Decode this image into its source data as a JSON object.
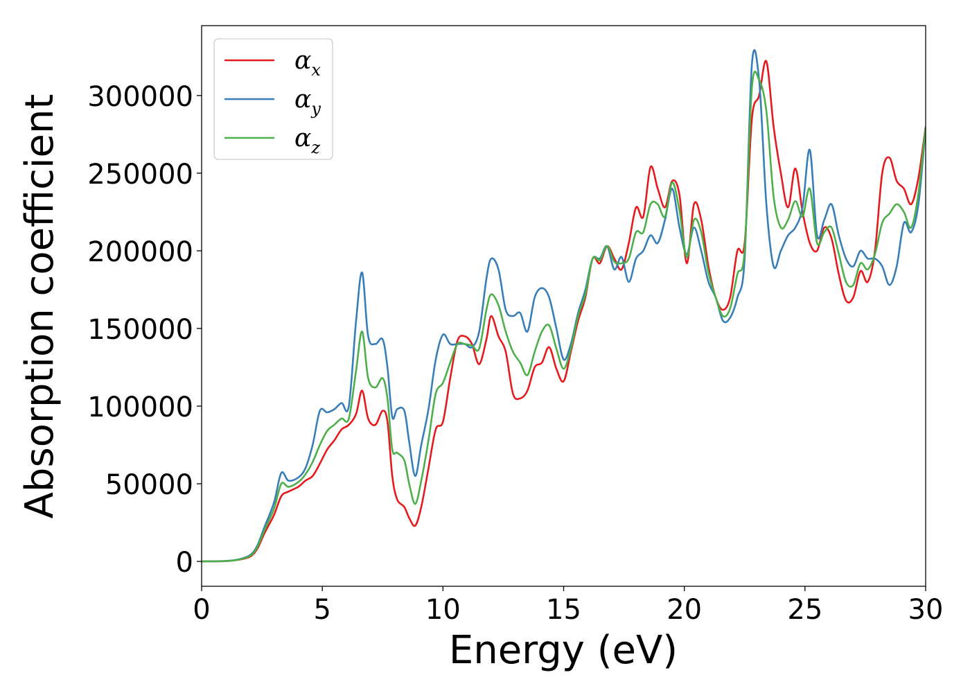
{
  "chart_data": {
    "type": "line",
    "title": "",
    "xlabel": "Energy (eV)",
    "ylabel": "Absorption coefficient",
    "xlim": [
      0,
      30
    ],
    "ylim": [
      -16000,
      345000
    ],
    "xticks": [
      0,
      5,
      10,
      15,
      20,
      25,
      30
    ],
    "yticks": [
      0,
      50000,
      100000,
      150000,
      200000,
      250000,
      300000
    ],
    "grid": false,
    "legend_position": "top-left",
    "series": [
      {
        "name": "α",
        "subscript": "x",
        "color": "#e41a1c",
        "x": [
          0,
          1,
          1.5,
          2,
          2.3,
          2.6,
          3,
          3.3,
          3.6,
          4,
          4.3,
          4.6,
          4.9,
          5.2,
          5.5,
          5.8,
          6.1,
          6.4,
          6.65,
          6.9,
          7.2,
          7.5,
          7.7,
          7.9,
          8.1,
          8.4,
          8.6,
          8.85,
          9.1,
          9.4,
          9.7,
          10,
          10.3,
          10.6,
          10.9,
          11.2,
          11.5,
          11.8,
          12,
          12.3,
          12.6,
          12.9,
          13.2,
          13.5,
          13.8,
          14.1,
          14.4,
          14.7,
          15,
          15.3,
          15.6,
          15.9,
          16.2,
          16.5,
          16.8,
          17.1,
          17.4,
          17.7,
          18,
          18.3,
          18.6,
          18.9,
          19.2,
          19.5,
          19.8,
          20.1,
          20.4,
          20.7,
          21,
          21.3,
          21.6,
          21.9,
          22.2,
          22.5,
          22.8,
          23.1,
          23.4,
          23.7,
          24,
          24.3,
          24.6,
          24.9,
          25.2,
          25.5,
          25.8,
          26.1,
          26.4,
          26.7,
          27,
          27.3,
          27.6,
          27.9,
          28.2,
          28.5,
          28.8,
          29.1,
          29.4,
          29.7,
          30
        ],
        "y": [
          0,
          200,
          1000,
          3000,
          8000,
          18000,
          30000,
          42000,
          45000,
          48000,
          52000,
          55000,
          63000,
          72000,
          78000,
          85000,
          88000,
          95000,
          110000,
          92000,
          88000,
          97000,
          90000,
          55000,
          40000,
          35000,
          28000,
          23000,
          35000,
          60000,
          85000,
          90000,
          118000,
          142000,
          145000,
          140000,
          127000,
          143000,
          158000,
          145000,
          135000,
          108000,
          105000,
          110000,
          125000,
          128000,
          138000,
          124000,
          116000,
          135000,
          155000,
          170000,
          195000,
          192000,
          203000,
          195000,
          188000,
          205000,
          228000,
          222000,
          254000,
          240000,
          228000,
          245000,
          236000,
          192000,
          230000,
          220000,
          190000,
          170000,
          162000,
          170000,
          200000,
          205000,
          285000,
          300000,
          322000,
          280000,
          250000,
          228000,
          253000,
          225000,
          205000,
          200000,
          215000,
          208000,
          185000,
          168000,
          170000,
          187000,
          180000,
          200000,
          250000,
          260000,
          245000,
          240000,
          230000,
          247000,
          280000
        ]
      },
      {
        "name": "α",
        "subscript": "y",
        "color": "#377eb8",
        "x": [
          0,
          1,
          1.5,
          2,
          2.3,
          2.6,
          3,
          3.3,
          3.6,
          4,
          4.3,
          4.6,
          4.9,
          5.2,
          5.5,
          5.8,
          6.1,
          6.4,
          6.65,
          6.9,
          7.2,
          7.5,
          7.7,
          7.9,
          8.1,
          8.4,
          8.6,
          8.85,
          9.1,
          9.4,
          9.7,
          10,
          10.3,
          10.6,
          10.9,
          11.2,
          11.5,
          11.8,
          12,
          12.3,
          12.6,
          12.9,
          13.2,
          13.5,
          13.8,
          14.1,
          14.4,
          14.7,
          15,
          15.3,
          15.6,
          15.9,
          16.2,
          16.5,
          16.8,
          17.1,
          17.4,
          17.7,
          18,
          18.3,
          18.6,
          18.9,
          19.2,
          19.5,
          19.8,
          20.1,
          20.4,
          20.7,
          21,
          21.3,
          21.6,
          21.9,
          22.2,
          22.5,
          22.8,
          23.1,
          23.4,
          23.7,
          24,
          24.3,
          24.6,
          24.9,
          25.2,
          25.5,
          25.8,
          26.1,
          26.4,
          26.7,
          27,
          27.3,
          27.6,
          27.9,
          28.2,
          28.5,
          28.8,
          29.1,
          29.4,
          29.7,
          30
        ],
        "y": [
          0,
          300,
          1200,
          4000,
          10000,
          22000,
          38000,
          57000,
          52000,
          54000,
          60000,
          75000,
          97000,
          96000,
          98000,
          102000,
          100000,
          155000,
          186000,
          145000,
          140000,
          143000,
          125000,
          93000,
          98000,
          97000,
          77000,
          55000,
          75000,
          98000,
          130000,
          146000,
          140000,
          140000,
          140000,
          138000,
          148000,
          182000,
          195000,
          188000,
          162000,
          158000,
          160000,
          148000,
          170000,
          176000,
          170000,
          150000,
          130000,
          140000,
          160000,
          175000,
          195000,
          195000,
          203000,
          188000,
          196000,
          180000,
          195000,
          200000,
          210000,
          205000,
          220000,
          240000,
          215000,
          198000,
          215000,
          200000,
          180000,
          170000,
          155000,
          157000,
          170000,
          195000,
          320000,
          310000,
          230000,
          190000,
          200000,
          210000,
          215000,
          228000,
          265000,
          210000,
          220000,
          230000,
          210000,
          195000,
          190000,
          200000,
          195000,
          195000,
          190000,
          178000,
          190000,
          218000,
          212000,
          230000,
          280000
        ]
      },
      {
        "name": "α",
        "subscript": "z",
        "color": "#4daf4a",
        "x": [
          0,
          1,
          1.5,
          2,
          2.3,
          2.6,
          3,
          3.3,
          3.6,
          4,
          4.3,
          4.6,
          4.9,
          5.2,
          5.5,
          5.8,
          6.1,
          6.4,
          6.65,
          6.9,
          7.2,
          7.5,
          7.7,
          7.9,
          8.1,
          8.4,
          8.6,
          8.85,
          9.1,
          9.4,
          9.7,
          10,
          10.3,
          10.6,
          10.9,
          11.2,
          11.5,
          11.8,
          12,
          12.3,
          12.6,
          12.9,
          13.2,
          13.5,
          13.8,
          14.1,
          14.4,
          14.7,
          15,
          15.3,
          15.6,
          15.9,
          16.2,
          16.5,
          16.8,
          17.1,
          17.4,
          17.7,
          18,
          18.3,
          18.6,
          18.9,
          19.2,
          19.5,
          19.8,
          20.1,
          20.4,
          20.7,
          21,
          21.3,
          21.6,
          21.9,
          22.2,
          22.5,
          22.8,
          23.1,
          23.4,
          23.7,
          24,
          24.3,
          24.6,
          24.9,
          25.2,
          25.5,
          25.8,
          26.1,
          26.4,
          26.7,
          27,
          27.3,
          27.6,
          27.9,
          28.2,
          28.5,
          28.8,
          29.1,
          29.4,
          29.7,
          30
        ],
        "y": [
          0,
          250,
          1100,
          3500,
          9000,
          20000,
          34000,
          50000,
          48000,
          51000,
          56000,
          64000,
          75000,
          84000,
          88000,
          92000,
          92000,
          123000,
          148000,
          118000,
          112000,
          118000,
          105000,
          72000,
          70000,
          65000,
          50000,
          37000,
          52000,
          78000,
          108000,
          115000,
          128000,
          140000,
          140000,
          139000,
          137000,
          162000,
          172000,
          165000,
          148000,
          135000,
          128000,
          120000,
          135000,
          148000,
          152000,
          137000,
          124000,
          137000,
          158000,
          172000,
          195000,
          194000,
          203000,
          193000,
          192000,
          195000,
          212000,
          212000,
          230000,
          230000,
          222000,
          244000,
          226000,
          196000,
          220000,
          212000,
          186000,
          170000,
          158000,
          163000,
          185000,
          200000,
          305000,
          310000,
          290000,
          235000,
          215000,
          220000,
          232000,
          222000,
          240000,
          205000,
          212000,
          215000,
          198000,
          180000,
          178000,
          192000,
          188000,
          198000,
          218000,
          224000,
          230000,
          225000,
          215000,
          237000,
          280000
        ]
      }
    ]
  }
}
